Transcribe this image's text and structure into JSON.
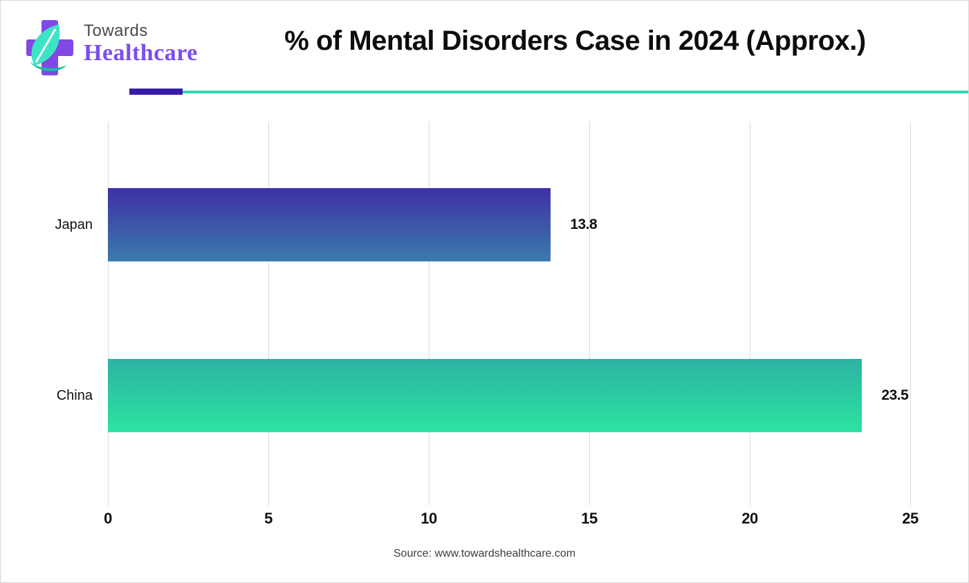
{
  "header": {
    "logo": {
      "line1": "Towards",
      "line2": "Healthcare"
    }
  },
  "chart_data": {
    "type": "bar",
    "orientation": "horizontal",
    "title": "% of Mental Disorders Case in 2024 (Approx.)",
    "categories": [
      "Japan",
      "China"
    ],
    "values": [
      13.8,
      23.5
    ],
    "xlabel": "",
    "ylabel": "",
    "xlim": [
      0,
      26.4
    ],
    "xticks": [
      0,
      5,
      10,
      15,
      20,
      25
    ],
    "grid": "vertical-gridlines",
    "legend": "none",
    "bar_gradients": [
      {
        "top": "#3e30a6",
        "bottom": "#3a7bac"
      },
      {
        "top": "#2cb3a3",
        "bottom": "#2de3a2"
      }
    ]
  },
  "footer": {
    "source": "Source: www.towardshealthcare.com"
  },
  "colors": {
    "logo_cross": "#8148e6",
    "logo_leaf": "#3fe4c4",
    "logo_leaf_dark": "#15bfa0",
    "logo_towards": "#4a4a4e",
    "logo_healthcare": "#7b4df0",
    "divider_accent": "#3a1ba8",
    "divider_line": "#2ed9ac",
    "gridline": "#d9d9d9",
    "title": "#0d0d0d",
    "text": "#111111",
    "source": "#3d3d3d"
  }
}
